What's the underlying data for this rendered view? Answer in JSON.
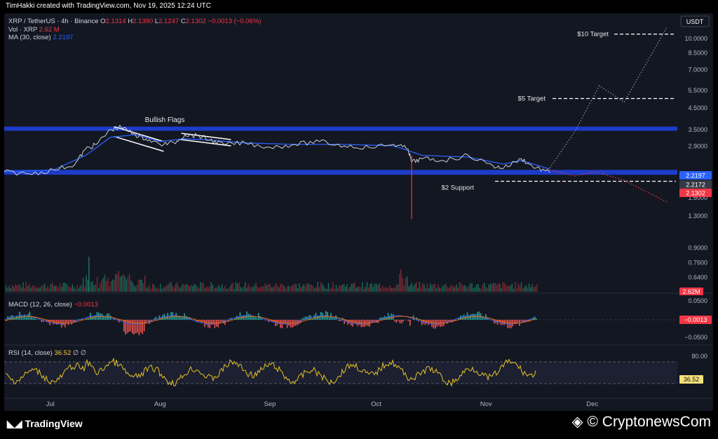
{
  "header": {
    "credit": "TimHakki created with TradingView.com, Nov 19, 2025 12:24 UTC"
  },
  "legend": {
    "symbol": "XRP / TetherUS · 4h · Binance",
    "o_label": "O",
    "o": "2.1314",
    "h_label": "H",
    "h": "2.1390",
    "l_label": "L",
    "l": "2.1247",
    "c_label": "C",
    "c": "2.1302",
    "change": "−0.0013 (−0.06%)",
    "vol_label": "Vol · XRP",
    "vol": "2.62 M",
    "ma_label": "MA (30, close)",
    "ma": "2.2197"
  },
  "macd_legend": {
    "label": "MACD (12, 26, close)",
    "value": "−0.0013"
  },
  "rsi_legend": {
    "label": "RSI (14, close)",
    "value": "36.52",
    "extra": "∅  ∅"
  },
  "footer": {
    "tradingview": "TradingView",
    "brand": "CryptonewsCom"
  },
  "chart_data": {
    "type": "line",
    "currency_button": "USDT",
    "price_axis": {
      "scale": "log",
      "ticks": [
        "10.0000",
        "8.5000",
        "7.0000",
        "5.5000",
        "4.5000",
        "3.5000",
        "2.9000",
        "1.6000",
        "1.3000",
        "0.9000",
        "0.7600",
        "0.6400"
      ],
      "ylim": [
        0.55,
        12.5
      ]
    },
    "price_labels": [
      {
        "text": "2.2197",
        "color": "#2962ff"
      },
      {
        "text": "2.2172",
        "color": "#363a45"
      },
      {
        "text": "2.1302",
        "color": "#f23645"
      }
    ],
    "volume_label": {
      "text": "2.62M",
      "color": "#f23645"
    },
    "macd_axis": {
      "ticks": [
        "0.0500",
        "−0.0500"
      ],
      "current": "−0.0013"
    },
    "rsi_axis": {
      "ticks": [
        "80.00"
      ],
      "current": "36.52",
      "band": [
        30,
        70
      ]
    },
    "time_axis": [
      "Jul",
      "Aug",
      "Sep",
      "Oct",
      "Nov",
      "Dec"
    ],
    "zones": [
      {
        "name": "resistance",
        "low": 3.45,
        "high": 3.62,
        "color": "#1e40d8"
      },
      {
        "name": "support",
        "low": 2.08,
        "high": 2.2,
        "color": "#1e40d8"
      }
    ],
    "targets": [
      {
        "text": "$10 Target",
        "value": 10.5
      },
      {
        "text": "$5 Target",
        "value": 5.0
      },
      {
        "text": "$2 Support",
        "value": 1.93
      }
    ],
    "annotations": [
      {
        "text": "Bullish Flags"
      }
    ],
    "series": [
      {
        "name": "XRP / TetherUS",
        "x": [
          "2025-06-18",
          "2025-06-25",
          "2025-07-02",
          "2025-07-08",
          "2025-07-11",
          "2025-07-14",
          "2025-07-18",
          "2025-07-21",
          "2025-07-25",
          "2025-07-28",
          "2025-08-01",
          "2025-08-05",
          "2025-08-08",
          "2025-08-12",
          "2025-08-15",
          "2025-08-19",
          "2025-08-25",
          "2025-09-01",
          "2025-09-08",
          "2025-09-15",
          "2025-09-22",
          "2025-09-29",
          "2025-10-06",
          "2025-10-10",
          "2025-10-11",
          "2025-10-14",
          "2025-10-20",
          "2025-10-27",
          "2025-11-03",
          "2025-11-06",
          "2025-11-11",
          "2025-11-14",
          "2025-11-19"
        ],
        "values": [
          2.15,
          2.1,
          2.2,
          2.35,
          2.8,
          2.95,
          3.5,
          3.6,
          3.3,
          3.15,
          2.95,
          3.0,
          3.3,
          3.25,
          3.1,
          2.95,
          3.0,
          2.85,
          2.95,
          3.05,
          2.9,
          2.85,
          2.95,
          2.8,
          2.4,
          2.5,
          2.45,
          2.6,
          2.3,
          2.25,
          2.5,
          2.3,
          2.13
        ]
      },
      {
        "name": "MA (30, close)",
        "x": [
          "2025-06-18",
          "2025-07-02",
          "2025-07-11",
          "2025-07-18",
          "2025-07-25",
          "2025-08-01",
          "2025-08-08",
          "2025-08-15",
          "2025-08-25",
          "2025-09-08",
          "2025-09-22",
          "2025-10-06",
          "2025-10-14",
          "2025-10-27",
          "2025-11-06",
          "2025-11-11",
          "2025-11-19"
        ],
        "values": [
          2.15,
          2.2,
          2.6,
          3.2,
          3.3,
          3.05,
          3.15,
          3.1,
          3.0,
          2.95,
          2.95,
          2.9,
          2.6,
          2.55,
          2.35,
          2.45,
          2.22
        ]
      }
    ],
    "projections": [
      {
        "name": "bull",
        "color": "#8a8f98",
        "x": [
          "2025-11-19",
          "2025-11-26",
          "2025-12-03",
          "2025-12-10",
          "2025-12-22"
        ],
        "values": [
          2.25,
          3.4,
          5.8,
          4.8,
          11.3
        ]
      },
      {
        "name": "bear",
        "color": "#f23645",
        "x": [
          "2025-11-19",
          "2025-11-26",
          "2025-12-02",
          "2025-12-10",
          "2025-12-22"
        ],
        "values": [
          2.2,
          2.05,
          2.15,
          1.95,
          1.52
        ]
      }
    ],
    "spike_low": {
      "x": "2025-10-11",
      "value": 1.25
    }
  }
}
